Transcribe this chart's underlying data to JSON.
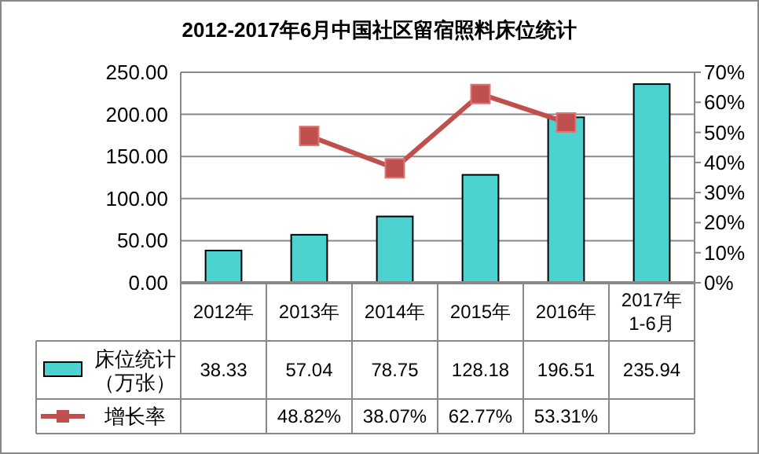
{
  "chart_data": {
    "type": "bar",
    "title": "2012-2017年6月中国社区留宿照料床位统计",
    "categories": [
      "2012年",
      "2013年",
      "2014年",
      "2015年",
      "2016年",
      "2017年\n1-6月"
    ],
    "series": [
      {
        "name": "床位统计（万张）",
        "color": "#4dd2d2",
        "values": [
          38.33,
          57.04,
          78.75,
          128.18,
          196.51,
          235.94
        ],
        "value_labels": [
          "38.33",
          "57.04",
          "78.75",
          "128.18",
          "196.51",
          "235.94"
        ]
      },
      {
        "name": "增长率",
        "type": "line",
        "axis": "y2",
        "color": "#c0504d",
        "marker": "square",
        "values": [
          null,
          48.82,
          38.07,
          62.77,
          53.31,
          null
        ],
        "value_labels": [
          null,
          "48.82%",
          "38.07%",
          "62.77%",
          "53.31%",
          null
        ]
      }
    ],
    "ylim": [
      0,
      250
    ],
    "yticks": [
      {
        "value": 0,
        "label": "0.00"
      },
      {
        "value": 50,
        "label": "50.00"
      },
      {
        "value": 100,
        "label": "100.00"
      },
      {
        "value": 150,
        "label": "150.00"
      },
      {
        "value": 200,
        "label": "200.00"
      },
      {
        "value": 250,
        "label": "250.00"
      }
    ],
    "y2lim": [
      0,
      70
    ],
    "y2ticks": [
      {
        "value": 0,
        "label": "0%"
      },
      {
        "value": 10,
        "label": "10%"
      },
      {
        "value": 20,
        "label": "20%"
      },
      {
        "value": 30,
        "label": "30%"
      },
      {
        "value": 40,
        "label": "40%"
      },
      {
        "value": 50,
        "label": "50%"
      },
      {
        "value": 60,
        "label": "60%"
      },
      {
        "value": 70,
        "label": "70%"
      }
    ],
    "grid": "y",
    "legend": "bottom"
  }
}
